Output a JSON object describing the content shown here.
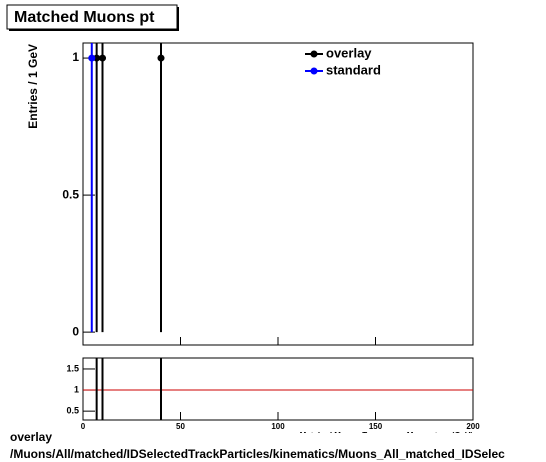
{
  "chart_data": [
    {
      "type": "scatter",
      "title": "Matched Muons pt",
      "ylabel": "Entries / 1 GeV",
      "xlim": [
        0,
        200
      ],
      "xticks": [
        0,
        50,
        100,
        150,
        200
      ],
      "ylim": [
        -0.047,
        1.055
      ],
      "yticks": [
        0,
        0.5,
        1
      ],
      "legend": "top-right",
      "series": [
        {
          "name": "overlay",
          "color": "#000000",
          "x": [
            7,
            10,
            40
          ],
          "values": [
            1,
            1,
            1
          ],
          "errors": [
            1,
            1,
            1
          ]
        },
        {
          "name": "standard",
          "color": "#0000ff",
          "x": [
            4.5
          ],
          "values": [
            1
          ],
          "errors": [
            1
          ]
        }
      ]
    },
    {
      "type": "ratio",
      "xlabel": "Matched Muons Transverse Momentum (GeV)",
      "xlim": [
        0,
        200
      ],
      "xticks": [
        0,
        50,
        100,
        150,
        200
      ],
      "ylim": [
        0.29,
        1.76
      ],
      "yticks": [
        0.5,
        1,
        1.5
      ],
      "reference": 1,
      "reference_color": "#cc0000",
      "series": [
        {
          "color": "#000000",
          "x": [
            7,
            10,
            40
          ]
        }
      ]
    }
  ],
  "footer": {
    "label": "overlay",
    "path": "/Muons/All/matched/IDSelectedTrackParticles/kinematics/Muons_All_matched_IDSelec"
  }
}
